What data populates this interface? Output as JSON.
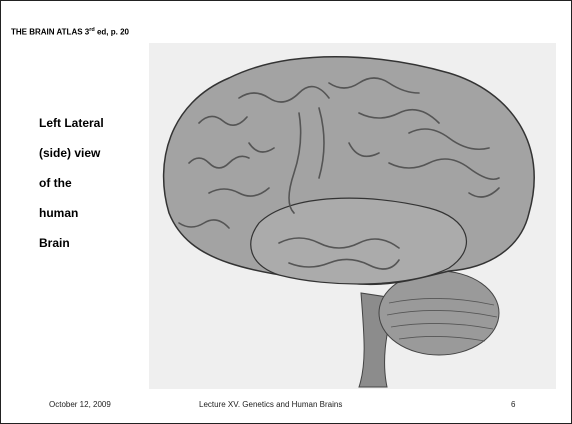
{
  "header": {
    "title_parts": [
      "THE BRAIN ATLAS 3",
      "rd",
      " ed, p. 20"
    ]
  },
  "caption": {
    "lines": [
      "Left Lateral",
      "(side) view",
      "of the",
      "human",
      "Brain"
    ]
  },
  "footer": {
    "date": "October 12, 2009",
    "lecture": "Lecture XV. Genetics and Human Brains",
    "page": "6"
  }
}
